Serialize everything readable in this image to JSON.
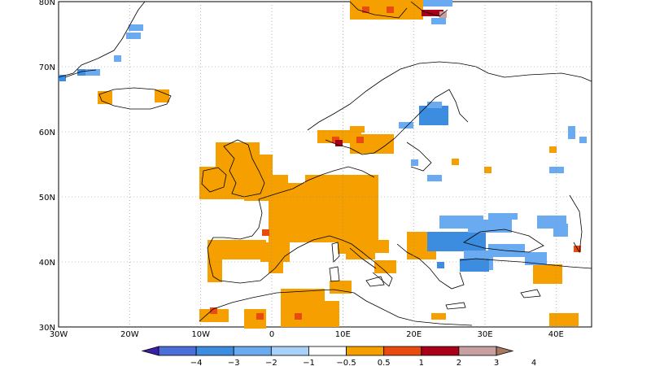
{
  "map": {
    "lat_labels": [
      "80N",
      "70N",
      "60N",
      "50N",
      "40N",
      "30N"
    ],
    "lon_labels": [
      "30W",
      "20W",
      "10W",
      "0",
      "10E",
      "20E",
      "30E",
      "40E"
    ],
    "extent": {
      "lon": [
        -30,
        45
      ],
      "lat": [
        30,
        80
      ]
    },
    "grid": "dotted",
    "land_outline_color": "#000000"
  },
  "colorbar": {
    "labels": [
      "−4",
      "−3",
      "−2",
      "−1",
      "−0.5",
      "0.5",
      "1",
      "2",
      "3",
      "4"
    ],
    "colors": [
      "#3c1ea8",
      "#4a6fd8",
      "#3c8de0",
      "#6aaaf0",
      "#a8d0f8",
      "#ffffff",
      "#f5a000",
      "#e84a10",
      "#a80018",
      "#c8a0a0",
      "#a87860"
    ]
  }
}
